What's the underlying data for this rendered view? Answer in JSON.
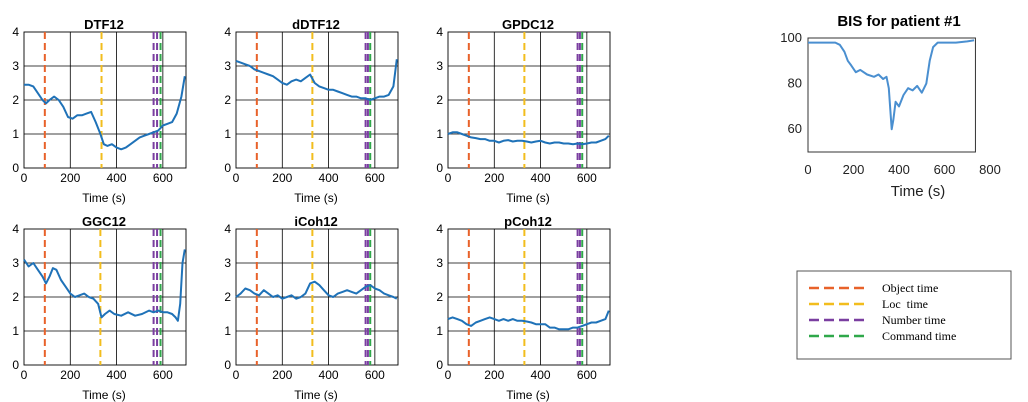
{
  "chart_data": [
    {
      "type": "line",
      "title": "DTF12",
      "xlabel": "Time (s)",
      "ylabel": "",
      "xlim": [
        0,
        700
      ],
      "ylim": [
        0,
        4
      ],
      "xticks": [
        0,
        200,
        400,
        600
      ],
      "yticks": [
        0,
        1,
        2,
        3,
        4
      ],
      "series": [
        {
          "color": "#1f72b8",
          "x": [
            0,
            20,
            40,
            60,
            80,
            95,
            110,
            130,
            150,
            170,
            190,
            210,
            230,
            250,
            270,
            290,
            310,
            330,
            345,
            360,
            380,
            400,
            420,
            440,
            460,
            480,
            500,
            520,
            540,
            560,
            580,
            600,
            620,
            640,
            660,
            680,
            695
          ],
          "y": [
            2.45,
            2.45,
            2.4,
            2.2,
            2.0,
            1.9,
            2.0,
            2.1,
            2.0,
            1.8,
            1.5,
            1.45,
            1.55,
            1.55,
            1.6,
            1.65,
            1.35,
            1.0,
            0.7,
            0.65,
            0.7,
            0.6,
            0.55,
            0.6,
            0.7,
            0.8,
            0.9,
            0.95,
            1.0,
            1.05,
            1.1,
            1.25,
            1.3,
            1.35,
            1.6,
            2.1,
            2.7
          ]
        }
      ],
      "vlines": [
        90,
        335,
        560,
        575,
        590
      ]
    },
    {
      "type": "line",
      "title": "dDTF12",
      "xlabel": "Time (s)",
      "ylabel": "",
      "xlim": [
        0,
        700
      ],
      "ylim": [
        0,
        4
      ],
      "xticks": [
        0,
        200,
        400,
        600
      ],
      "yticks": [
        0,
        1,
        2,
        3,
        4
      ],
      "series": [
        {
          "color": "#1f72b8",
          "x": [
            0,
            20,
            40,
            60,
            80,
            100,
            120,
            140,
            160,
            180,
            200,
            220,
            240,
            260,
            280,
            300,
            320,
            340,
            360,
            380,
            400,
            420,
            440,
            460,
            480,
            500,
            520,
            540,
            560,
            580,
            600,
            620,
            640,
            660,
            680,
            695
          ],
          "y": [
            3.15,
            3.1,
            3.05,
            3.0,
            2.9,
            2.85,
            2.8,
            2.75,
            2.7,
            2.6,
            2.5,
            2.45,
            2.55,
            2.6,
            2.55,
            2.65,
            2.75,
            2.5,
            2.4,
            2.35,
            2.3,
            2.3,
            2.25,
            2.2,
            2.15,
            2.1,
            2.1,
            2.05,
            2.05,
            2.0,
            2.05,
            2.1,
            2.1,
            2.15,
            2.4,
            3.2
          ]
        }
      ],
      "vlines": [
        90,
        330,
        560,
        570,
        580
      ]
    },
    {
      "type": "line",
      "title": "GPDC12",
      "xlabel": "Time (s)",
      "ylabel": "",
      "xlim": [
        0,
        700
      ],
      "ylim": [
        0,
        4
      ],
      "xticks": [
        0,
        200,
        400,
        600
      ],
      "yticks": [
        0,
        1,
        2,
        3,
        4
      ],
      "series": [
        {
          "color": "#1f72b8",
          "x": [
            0,
            20,
            40,
            60,
            80,
            100,
            120,
            140,
            160,
            180,
            200,
            220,
            240,
            260,
            280,
            300,
            320,
            340,
            360,
            380,
            400,
            420,
            440,
            460,
            480,
            500,
            520,
            540,
            560,
            580,
            600,
            620,
            640,
            660,
            680,
            695
          ],
          "y": [
            1.0,
            1.05,
            1.05,
            1.0,
            0.95,
            0.9,
            0.88,
            0.85,
            0.85,
            0.8,
            0.8,
            0.75,
            0.8,
            0.82,
            0.78,
            0.8,
            0.8,
            0.78,
            0.75,
            0.78,
            0.8,
            0.75,
            0.72,
            0.75,
            0.75,
            0.72,
            0.72,
            0.7,
            0.72,
            0.7,
            0.72,
            0.75,
            0.75,
            0.8,
            0.85,
            0.95
          ]
        }
      ],
      "vlines": [
        90,
        330,
        560,
        570,
        580
      ]
    },
    {
      "type": "line",
      "title": "GGC12",
      "xlabel": "Time (s)",
      "ylabel": "",
      "xlim": [
        0,
        700
      ],
      "ylim": [
        0,
        4
      ],
      "xticks": [
        0,
        200,
        400,
        600
      ],
      "yticks": [
        0,
        1,
        2,
        3,
        4
      ],
      "series": [
        {
          "color": "#1f72b8",
          "x": [
            0,
            10,
            20,
            40,
            60,
            80,
            95,
            110,
            125,
            140,
            160,
            180,
            200,
            220,
            240,
            260,
            280,
            300,
            320,
            335,
            350,
            370,
            390,
            420,
            450,
            480,
            510,
            540,
            560,
            580,
            600,
            620,
            640,
            655,
            665,
            675,
            685,
            695
          ],
          "y": [
            3.1,
            3.0,
            2.9,
            3.0,
            2.8,
            2.6,
            2.4,
            2.6,
            2.85,
            2.8,
            2.5,
            2.3,
            2.1,
            2.0,
            2.05,
            2.1,
            2.0,
            1.95,
            1.8,
            1.4,
            1.5,
            1.6,
            1.5,
            1.45,
            1.55,
            1.45,
            1.5,
            1.6,
            1.55,
            1.6,
            1.55,
            1.55,
            1.5,
            1.4,
            1.3,
            1.8,
            3.0,
            3.4
          ]
        }
      ],
      "vlines": [
        90,
        330,
        560,
        575,
        590
      ]
    },
    {
      "type": "line",
      "title": "iCoh12",
      "xlabel": "Time (s)",
      "ylabel": "",
      "xlim": [
        0,
        700
      ],
      "ylim": [
        0,
        4
      ],
      "xticks": [
        0,
        200,
        400,
        600
      ],
      "yticks": [
        0,
        1,
        2,
        3,
        4
      ],
      "series": [
        {
          "color": "#1f72b8",
          "x": [
            0,
            20,
            40,
            60,
            80,
            100,
            120,
            140,
            160,
            180,
            200,
            220,
            240,
            260,
            280,
            300,
            320,
            340,
            360,
            380,
            400,
            420,
            440,
            460,
            480,
            500,
            520,
            540,
            560,
            580,
            600,
            620,
            640,
            660,
            680,
            695
          ],
          "y": [
            2.0,
            2.1,
            2.25,
            2.2,
            2.1,
            2.05,
            2.2,
            2.1,
            2.0,
            2.05,
            1.95,
            2.0,
            2.05,
            1.95,
            2.0,
            2.1,
            2.4,
            2.45,
            2.35,
            2.2,
            2.05,
            2.0,
            2.1,
            2.15,
            2.2,
            2.15,
            2.1,
            2.2,
            2.3,
            2.35,
            2.25,
            2.2,
            2.1,
            2.05,
            2.0,
            1.95
          ]
        }
      ],
      "vlines": [
        90,
        330,
        560,
        570,
        580
      ]
    },
    {
      "type": "line",
      "title": "pCoh12",
      "xlabel": "Time (s)",
      "ylabel": "",
      "xlim": [
        0,
        700
      ],
      "ylim": [
        0,
        4
      ],
      "xticks": [
        0,
        200,
        400,
        600
      ],
      "yticks": [
        0,
        1,
        2,
        3,
        4
      ],
      "series": [
        {
          "color": "#1f72b8",
          "x": [
            0,
            20,
            40,
            60,
            80,
            100,
            120,
            140,
            160,
            180,
            200,
            220,
            240,
            260,
            280,
            300,
            320,
            340,
            360,
            380,
            400,
            420,
            440,
            460,
            480,
            500,
            520,
            540,
            560,
            580,
            600,
            620,
            640,
            660,
            680,
            695
          ],
          "y": [
            1.35,
            1.4,
            1.35,
            1.3,
            1.2,
            1.15,
            1.25,
            1.3,
            1.35,
            1.4,
            1.35,
            1.3,
            1.35,
            1.3,
            1.35,
            1.3,
            1.3,
            1.28,
            1.25,
            1.2,
            1.2,
            1.2,
            1.1,
            1.1,
            1.05,
            1.05,
            1.05,
            1.1,
            1.1,
            1.15,
            1.2,
            1.25,
            1.25,
            1.3,
            1.35,
            1.6
          ]
        }
      ],
      "vlines": [
        90,
        330,
        560,
        570,
        580
      ]
    },
    {
      "type": "line",
      "title": "BIS for patient #1",
      "xlabel": "Time (s)",
      "ylabel": "",
      "xlim": [
        0,
        800
      ],
      "ylim": [
        50,
        100
      ],
      "xticks": [
        0,
        200,
        400,
        600,
        800
      ],
      "yticks": [
        60,
        80,
        100
      ],
      "series": [
        {
          "color": "#4a8fd0",
          "x": [
            0,
            40,
            80,
            120,
            140,
            160,
            175,
            190,
            210,
            230,
            260,
            290,
            310,
            330,
            345,
            355,
            362,
            368,
            375,
            385,
            400,
            420,
            440,
            460,
            480,
            500,
            520,
            535,
            550,
            570,
            600,
            650,
            700,
            730
          ],
          "y": [
            98,
            98,
            98,
            98,
            97,
            94,
            90,
            88,
            85,
            86,
            84,
            83,
            84,
            82,
            83,
            78,
            68,
            60,
            64,
            72,
            70,
            75,
            78,
            77,
            79,
            76,
            80,
            90,
            96,
            98,
            98,
            98,
            98.5,
            99
          ]
        }
      ]
    }
  ],
  "legend": {
    "items": [
      {
        "label": "Object time",
        "color": "#e8622a"
      },
      {
        "label": "Loc  time",
        "color": "#f2bd1d"
      },
      {
        "label": "Number time",
        "color": "#7a3ea0"
      },
      {
        "label": "Command time",
        "color": "#2fa84a"
      }
    ]
  },
  "colors": {
    "series": "#1f72b8",
    "object": "#e8622a",
    "loc": "#f2bd1d",
    "number": "#7a3ea0",
    "command": "#2fa84a"
  }
}
